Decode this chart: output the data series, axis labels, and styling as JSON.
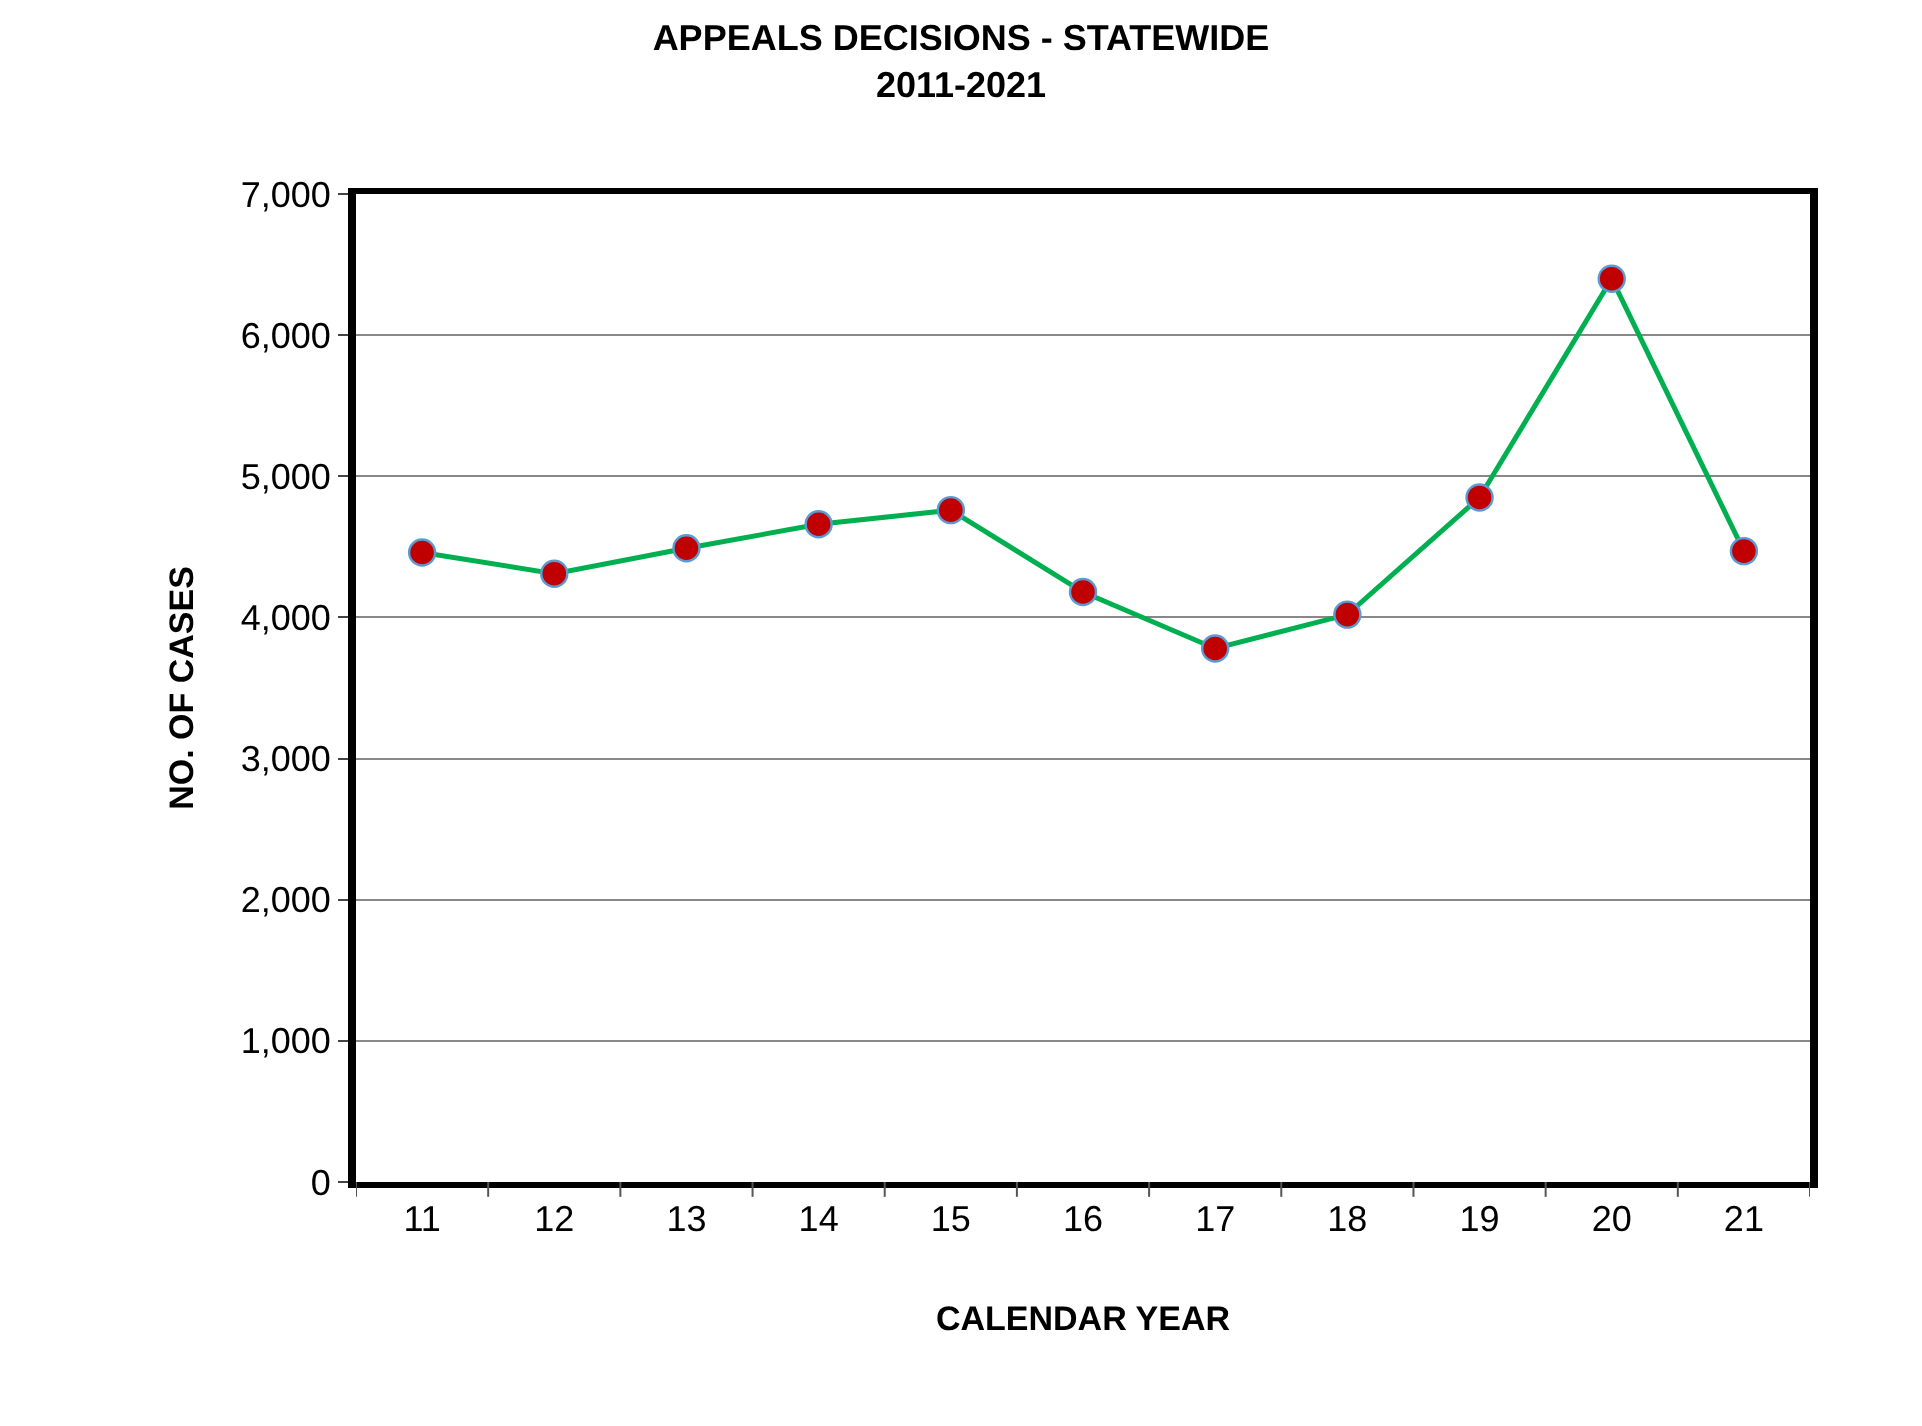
{
  "chart_data": {
    "type": "line",
    "title": "APPEALS DECISIONS - STATEWIDE\n2011-2021",
    "xlabel": "CALENDAR YEAR",
    "ylabel": "NO. OF CASES",
    "categories": [
      "11",
      "12",
      "13",
      "14",
      "15",
      "16",
      "17",
      "18",
      "19",
      "20",
      "21"
    ],
    "series": [
      {
        "color": "#00b050",
        "colors": [
          "#c00000",
          "#c00000",
          "#c00000",
          "#c00000",
          "#c00000",
          "#c00000",
          "#c00000",
          "#c00000",
          "#c00000",
          "#c00000",
          "#c00000"
        ],
        "values": [
          4460,
          4310,
          4490,
          4660,
          4760,
          4180,
          3780,
          4020,
          4850,
          6400,
          4470
        ]
      }
    ],
    "ylim": [
      0,
      7000
    ],
    "yticks": [
      {
        "value": 0,
        "label": "0"
      },
      {
        "value": 1000,
        "label": "1,000"
      },
      {
        "value": 2000,
        "label": "2,000"
      },
      {
        "value": 3000,
        "label": "3,000"
      },
      {
        "value": 4000,
        "label": "4,000"
      },
      {
        "value": 5000,
        "label": "5,000"
      },
      {
        "value": 6000,
        "label": "6,000"
      },
      {
        "value": 7000,
        "label": "7,000"
      }
    ],
    "grid": "y",
    "marker": "circle",
    "line_style": "solid"
  }
}
